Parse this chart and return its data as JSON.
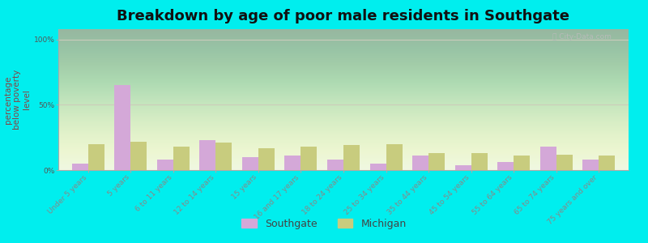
{
  "title": "Breakdown by age of poor male residents in Southgate",
  "ylabel": "percentage\nbelow poverty\nlevel",
  "categories": [
    "Under 5 years",
    "5 years",
    "6 to 11 years",
    "12 to 14 years",
    "15 years",
    "16 and 17 years",
    "18 to 24 years",
    "25 to 34 years",
    "35 to 44 years",
    "45 to 54 years",
    "55 to 64 years",
    "65 to 74 years",
    "75 years and over"
  ],
  "southgate_values": [
    5,
    65,
    8,
    23,
    10,
    11,
    8,
    5,
    11,
    4,
    6,
    18,
    8
  ],
  "michigan_values": [
    20,
    22,
    18,
    21,
    17,
    18,
    19,
    20,
    13,
    13,
    11,
    12,
    11
  ],
  "southgate_color": "#d4a8d8",
  "michigan_color": "#c8cc7e",
  "outer_bg": "#00eeee",
  "plot_bg": "#eef5e0",
  "ylim": [
    0,
    108
  ],
  "yticks": [
    0,
    50,
    100
  ],
  "ytick_labels": [
    "0%",
    "50%",
    "100%"
  ],
  "bar_width": 0.38,
  "title_fontsize": 13,
  "axis_label_fontsize": 7.5,
  "tick_fontsize": 6.5,
  "legend_fontsize": 9
}
